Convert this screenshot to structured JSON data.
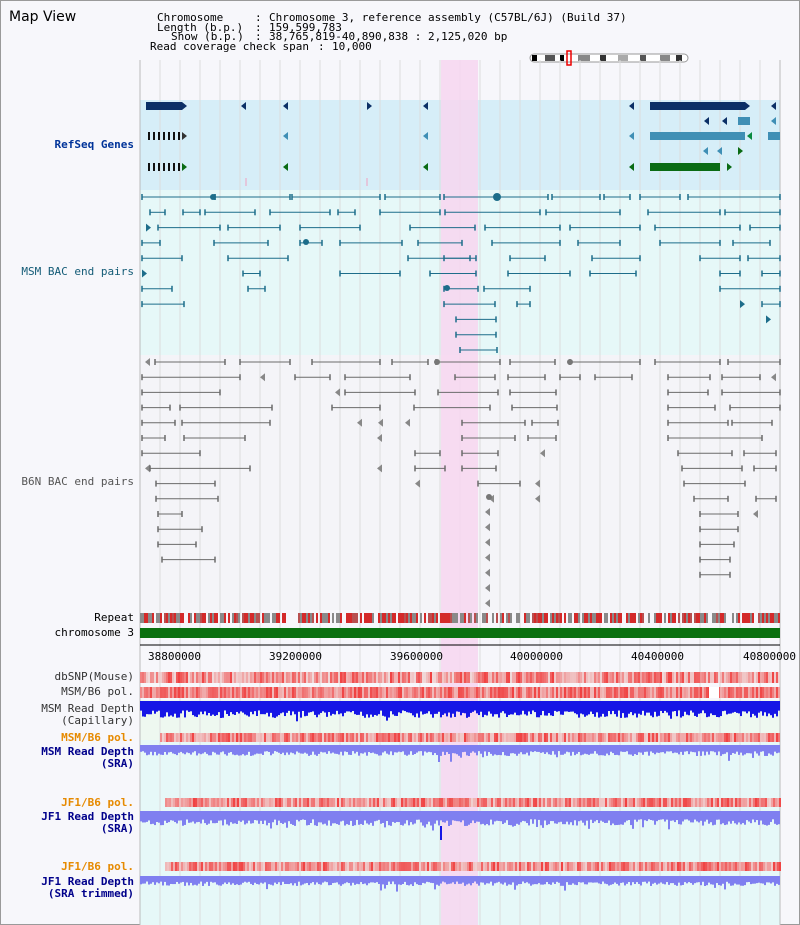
{
  "title": "Map View",
  "header": {
    "chromosome_label": "Chromosome",
    "chromosome_value": "Chromosome 3, reference assembly (C57BL/6J) (Build 37)",
    "length_label": "Length (b.p.)",
    "length_value": "159,599,783",
    "show_label": "Show (b.p.)",
    "show_value": "38,765,819-40,890,838 : 2,125,020 bp",
    "span_label": "Read coverage check span",
    "span_value": "10,000"
  },
  "tracks": {
    "refseq": "RefSeq Genes",
    "msm_bac": "MSM BAC end pairs",
    "b6n_bac": "B6N BAC end pairs",
    "repeat": "Repeat",
    "chromosome": "chromosome 3",
    "dbsnp": "dbSNP(Mouse)",
    "msm_b6_pol_1": "MSM/B6 pol.",
    "msm_read_depth_cap": "MSM Read Depth\n(Capillary)",
    "msm_b6_pol_2": "MSM/B6 pol.",
    "msm_read_depth_sra": "MSM Read Depth\n(SRA)",
    "jf1_b6_pol_1": "JF1/B6 pol.",
    "jf1_read_depth_sra": "JF1 Read Depth\n(SRA)",
    "jf1_b6_pol_2": "JF1/B6 pol.",
    "jf1_read_depth_trim": "JF1 Read Depth\n(SRA trimmed)"
  },
  "axis_ticks": [
    "38800000",
    "39200000",
    "39600000",
    "40000000",
    "40400000",
    "40800000"
  ],
  "colors": {
    "refseq_bg": "#d6eef8",
    "msm_bg": "#e6f8f8",
    "highlight": "#f7d6f0",
    "gene_dark": "#0b2f66",
    "gene_mid": "#3f8fb5",
    "gene_green": "#0a6b14",
    "bac_teal": "#1d6d8a",
    "bac_gray": "#6b6b6b",
    "chromosome_green": "#0a700f",
    "depth_blue": "#1616e6",
    "depth_light": "#7f7ff0",
    "pol_red": "#e84646"
  }
}
